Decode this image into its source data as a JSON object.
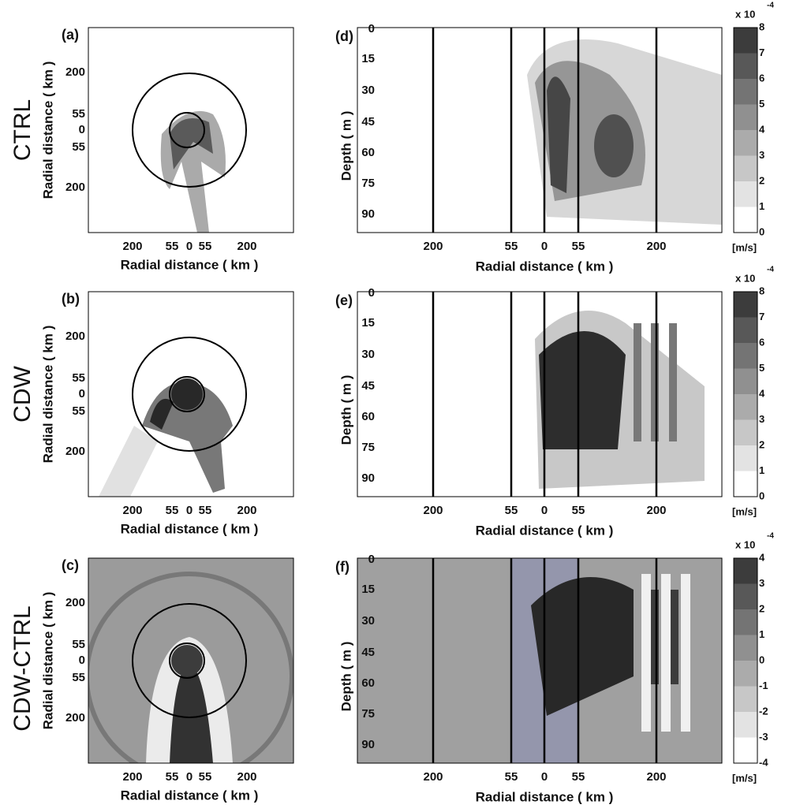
{
  "rows": [
    {
      "name": "CTRL",
      "map": {
        "label": "(a)",
        "ylabel": "Radial distance ( km )",
        "xlabel": "Radial distance ( km )",
        "yticks": [
          "200",
          "55",
          "0",
          "55",
          "200"
        ],
        "xticks": [
          "200",
          "55",
          "0",
          "55",
          "200"
        ]
      },
      "section": {
        "label": "(d)",
        "ylabel": "Depth ( m )",
        "xlabel": "Radial distance ( km )",
        "yticks": [
          "0",
          "15",
          "30",
          "45",
          "60",
          "75",
          "90"
        ],
        "xticks": [
          "200",
          "55",
          "0",
          "55",
          "200"
        ]
      },
      "colorbar": {
        "exponent": "x 10",
        "power": "-4",
        "ticks": [
          "8",
          "7",
          "6",
          "5",
          "4",
          "3",
          "2",
          "1",
          "0"
        ],
        "unit": "[m/s]"
      }
    },
    {
      "name": "CDW",
      "map": {
        "label": "(b)",
        "ylabel": "Radial distance ( km )",
        "xlabel": "Radial distance ( km )",
        "yticks": [
          "200",
          "55",
          "0",
          "55",
          "200"
        ],
        "xticks": [
          "200",
          "55",
          "0",
          "55",
          "200"
        ]
      },
      "section": {
        "label": "(e)",
        "ylabel": "Depth ( m )",
        "xlabel": "Radial distance ( km )",
        "yticks": [
          "0",
          "15",
          "30",
          "45",
          "60",
          "75",
          "90"
        ],
        "xticks": [
          "200",
          "55",
          "0",
          "55",
          "200"
        ]
      },
      "colorbar": {
        "exponent": "x 10",
        "power": "-4",
        "ticks": [
          "8",
          "7",
          "6",
          "5",
          "4",
          "3",
          "2",
          "1",
          "0"
        ],
        "unit": "[m/s]"
      }
    },
    {
      "name": "CDW-CTRL",
      "map": {
        "label": "(c)",
        "ylabel": "Radial distance ( km )",
        "xlabel": "Radial distance ( km )",
        "yticks": [
          "200",
          "55",
          "0",
          "55",
          "200"
        ],
        "xticks": [
          "200",
          "55",
          "0",
          "55",
          "200"
        ]
      },
      "section": {
        "label": "(f)",
        "ylabel": "Depth ( m )",
        "xlabel": "Radial distance ( km )",
        "yticks": [
          "0",
          "15",
          "30",
          "45",
          "60",
          "75",
          "90"
        ],
        "xticks": [
          "200",
          "55",
          "0",
          "55",
          "200"
        ]
      },
      "colorbar": {
        "exponent": "x 10",
        "power": "-4",
        "ticks": [
          "4",
          "3",
          "2",
          "1",
          "0",
          "-1",
          "-2",
          "-3",
          "-4"
        ],
        "unit": "[m/s]"
      }
    }
  ]
}
